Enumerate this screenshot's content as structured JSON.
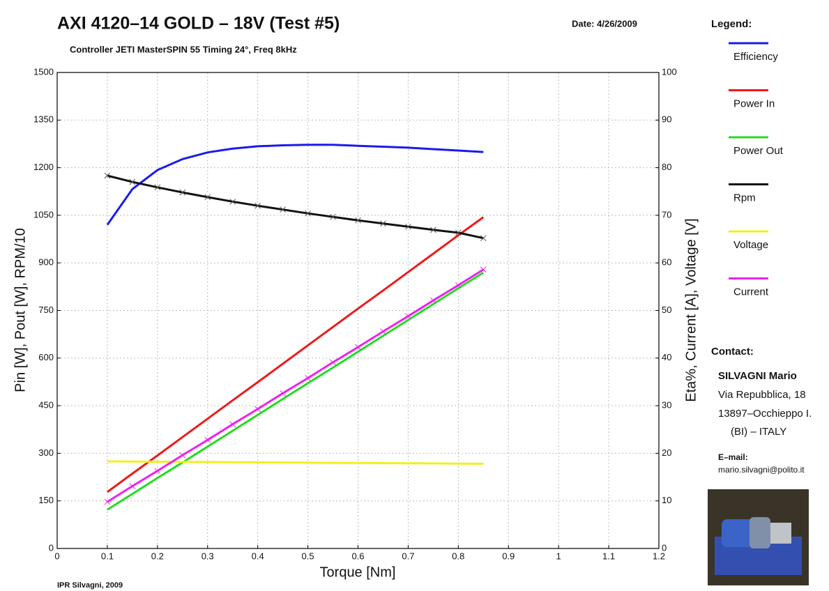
{
  "chart_data": {
    "type": "line",
    "title": "AXI 4120–14 GOLD – 18V (Test #5)",
    "subtitle": "Controller JETI MasterSPIN 55 Timing 24°, Freq 8kHz",
    "date": "Date: 4/26/2009",
    "legend_title": "Legend:",
    "xlabel": "Torque [Nm]",
    "ylabel": "Pin [W], Pout [W], RPM/10",
    "y2label": "Eta%, Current [A], Voltage [V]",
    "grid": true,
    "xlim": [
      0,
      1.2
    ],
    "xticks": [
      0,
      0.1,
      0.2,
      0.3,
      0.4,
      0.5,
      0.6,
      0.7,
      0.8,
      0.9,
      1,
      1.1,
      1.2
    ],
    "ylim": [
      0,
      1500
    ],
    "yticks": [
      0,
      150,
      300,
      450,
      600,
      750,
      900,
      1050,
      1200,
      1350,
      1500
    ],
    "y2lim": [
      0,
      100
    ],
    "y2ticks": [
      0,
      10,
      20,
      30,
      40,
      50,
      60,
      70,
      80,
      90,
      100
    ],
    "x": [
      0.1,
      0.15,
      0.2,
      0.25,
      0.3,
      0.35,
      0.4,
      0.45,
      0.5,
      0.55,
      0.6,
      0.65,
      0.7,
      0.75,
      0.8,
      0.85
    ],
    "series": [
      {
        "name": "Efficiency",
        "color": "#1a1aee",
        "axis": "y2",
        "markers": false,
        "values": [
          68,
          75.5,
          79.5,
          81.8,
          83.2,
          84,
          84.5,
          84.7,
          84.8,
          84.8,
          84.6,
          84.4,
          84.2,
          83.9,
          83.6,
          83.3
        ]
      },
      {
        "name": "Power In",
        "color": "#ee1a1a",
        "markers": false,
        "values": [
          178,
          236,
          293,
          351,
          409,
          467,
          524,
          582,
          640,
          698,
          756,
          813,
          871,
          929,
          987,
          1044
        ]
      },
      {
        "name": "Power Out",
        "color": "#22dd22",
        "markers": false,
        "values": [
          122,
          172,
          222,
          271,
          321,
          371,
          421,
          471,
          521,
          570,
          620,
          670,
          720,
          770,
          820,
          869
        ]
      },
      {
        "name": "Rpm",
        "color": "#111111",
        "markers": true,
        "values": [
          1175,
          1155,
          1138,
          1122,
          1107,
          1093,
          1080,
          1068,
          1056,
          1045,
          1034,
          1024,
          1014,
          1004,
          995,
          978
        ]
      },
      {
        "name": "Voltage",
        "color": "#f0f020",
        "axis": "y2",
        "markers": false,
        "values": [
          18.3,
          18.27,
          18.23,
          18.2,
          18.17,
          18.13,
          18.1,
          18.07,
          18.03,
          18,
          17.97,
          17.93,
          17.9,
          17.87,
          17.83,
          17.8
        ]
      },
      {
        "name": "Current",
        "color": "#ee22ee",
        "axis": "y2",
        "markers": true,
        "values": [
          9.8,
          13.1,
          16.3,
          19.6,
          22.8,
          26.1,
          29.3,
          32.6,
          35.8,
          39.1,
          42.3,
          45.6,
          48.8,
          52.1,
          55.3,
          58.6
        ]
      }
    ]
  },
  "contact": {
    "heading": "Contact:",
    "name": "SILVAGNI Mario",
    "address": [
      "Via Repubblica, 18",
      "13897–Occhieppo I.",
      "(BI) – ITALY"
    ],
    "email_label": "E–mail:",
    "email": "mario.silvagni@polito.it"
  },
  "footer": "IPR Silvagni, 2009"
}
